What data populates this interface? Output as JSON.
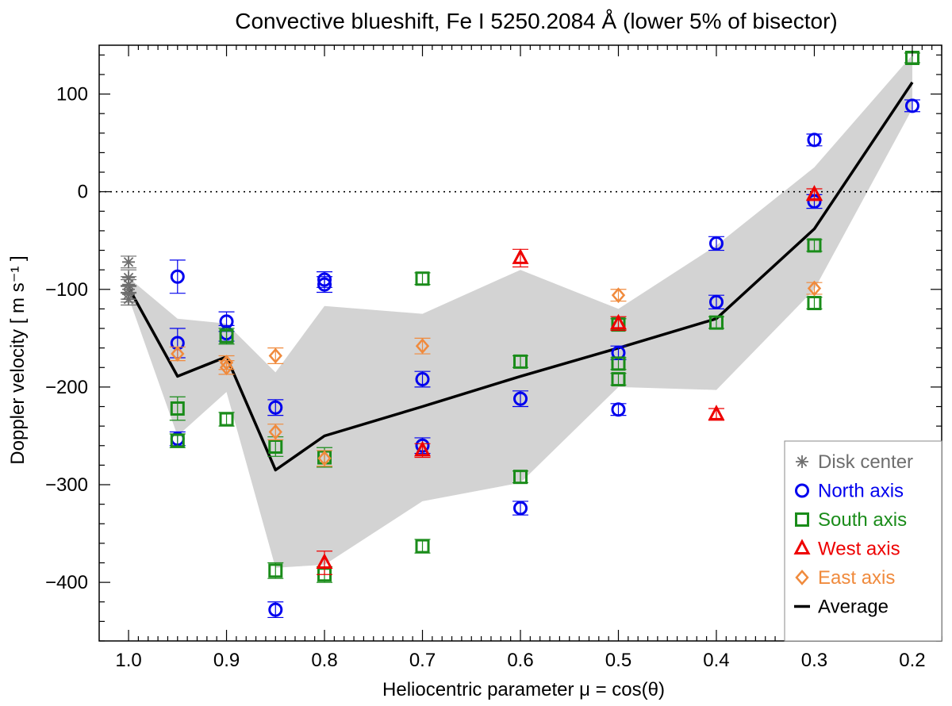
{
  "chart_data": {
    "type": "scatter",
    "title": "Convective blueshift, Fe I 5250.2084 Å (lower 5% of bisector)",
    "xlabel": "Heliocentric parameter μ = cos(θ)",
    "ylabel": "Doppler velocity [ m s⁻¹ ]",
    "xlim": [
      1.03,
      0.17
    ],
    "ylim": [
      -460,
      150
    ],
    "x_reversed": true,
    "x_ticks": [
      1.0,
      0.9,
      0.8,
      0.7,
      0.6,
      0.5,
      0.4,
      0.3,
      0.2
    ],
    "x_tick_labels": [
      "1.0",
      "0.9",
      "0.8",
      "0.7",
      "0.6",
      "0.5",
      "0.4",
      "0.3",
      "0.2"
    ],
    "y_ticks": [
      100,
      0,
      -100,
      -200,
      -300,
      -400
    ],
    "y_tick_labels": [
      "100",
      "0",
      "−100",
      "−200",
      "−300",
      "−400"
    ],
    "zero_line": "dotted",
    "legend_position": "bottom-right",
    "colors": {
      "disk_center": "#6e6e6e",
      "north": "#0000ee",
      "south": "#1a8c1a",
      "west": "#ee0000",
      "east": "#f08a3c",
      "average": "#000000",
      "band": "#d3d3d3"
    },
    "series": [
      {
        "name": "Disk center",
        "marker": "asterisk",
        "color_key": "disk_center",
        "points": [
          {
            "x": 1.0,
            "y": -72,
            "err": 6
          },
          {
            "x": 1.0,
            "y": -88,
            "err": 8
          },
          {
            "x": 1.0,
            "y": -95,
            "err": 8
          },
          {
            "x": 1.0,
            "y": -100,
            "err": 10
          },
          {
            "x": 1.0,
            "y": -105,
            "err": 8
          },
          {
            "x": 1.0,
            "y": -110,
            "err": 6
          }
        ]
      },
      {
        "name": "North axis",
        "marker": "circle",
        "color_key": "north",
        "points": [
          {
            "x": 0.95,
            "y": -87,
            "err": 17
          },
          {
            "x": 0.95,
            "y": -155,
            "err": 15
          },
          {
            "x": 0.95,
            "y": -253,
            "err": 7
          },
          {
            "x": 0.9,
            "y": -133,
            "err": 10
          },
          {
            "x": 0.9,
            "y": -145,
            "err": 8
          },
          {
            "x": 0.85,
            "y": -221,
            "err": 8
          },
          {
            "x": 0.85,
            "y": -428,
            "err": 8
          },
          {
            "x": 0.8,
            "y": -90,
            "err": 8
          },
          {
            "x": 0.8,
            "y": -95,
            "err": 8
          },
          {
            "x": 0.7,
            "y": -192,
            "err": 8
          },
          {
            "x": 0.7,
            "y": -260,
            "err": 8
          },
          {
            "x": 0.6,
            "y": -212,
            "err": 8
          },
          {
            "x": 0.6,
            "y": -324,
            "err": 7
          },
          {
            "x": 0.5,
            "y": -165,
            "err": 7
          },
          {
            "x": 0.5,
            "y": -223,
            "err": 6
          },
          {
            "x": 0.4,
            "y": -53,
            "err": 7
          },
          {
            "x": 0.4,
            "y": -113,
            "err": 7
          },
          {
            "x": 0.3,
            "y": 53,
            "err": 6
          },
          {
            "x": 0.3,
            "y": -10,
            "err": 7
          },
          {
            "x": 0.2,
            "y": 88,
            "err": 6
          }
        ]
      },
      {
        "name": "South axis",
        "marker": "square",
        "color_key": "south",
        "points": [
          {
            "x": 0.95,
            "y": -222,
            "err": 12
          },
          {
            "x": 0.95,
            "y": -255,
            "err": 7
          },
          {
            "x": 0.9,
            "y": -148,
            "err": 8
          },
          {
            "x": 0.9,
            "y": -233,
            "err": 7
          },
          {
            "x": 0.85,
            "y": -261,
            "err": 10
          },
          {
            "x": 0.85,
            "y": -388,
            "err": 8
          },
          {
            "x": 0.8,
            "y": -272,
            "err": 10
          },
          {
            "x": 0.8,
            "y": -392,
            "err": 8
          },
          {
            "x": 0.7,
            "y": -89,
            "err": 6
          },
          {
            "x": 0.7,
            "y": -363,
            "err": 7
          },
          {
            "x": 0.6,
            "y": -174,
            "err": 6
          },
          {
            "x": 0.6,
            "y": -292,
            "err": 6
          },
          {
            "x": 0.5,
            "y": -136,
            "err": 6
          },
          {
            "x": 0.5,
            "y": -176,
            "err": 6
          },
          {
            "x": 0.5,
            "y": -192,
            "err": 6
          },
          {
            "x": 0.4,
            "y": -134,
            "err": 6
          },
          {
            "x": 0.3,
            "y": -55,
            "err": 6
          },
          {
            "x": 0.3,
            "y": -114,
            "err": 6
          },
          {
            "x": 0.2,
            "y": 137,
            "err": 5
          }
        ]
      },
      {
        "name": "West axis",
        "marker": "triangle",
        "color_key": "west",
        "points": [
          {
            "x": 0.8,
            "y": -380,
            "err": 12
          },
          {
            "x": 0.7,
            "y": -265,
            "err": 7
          },
          {
            "x": 0.6,
            "y": -68,
            "err": 9
          },
          {
            "x": 0.5,
            "y": -135,
            "err": 7
          },
          {
            "x": 0.4,
            "y": -228,
            "err": 6
          },
          {
            "x": 0.3,
            "y": -3,
            "err": 6
          }
        ]
      },
      {
        "name": "East axis",
        "marker": "diamond",
        "color_key": "east",
        "points": [
          {
            "x": 0.95,
            "y": -166,
            "err": 7
          },
          {
            "x": 0.9,
            "y": -175,
            "err": 7
          },
          {
            "x": 0.9,
            "y": -180,
            "err": 7
          },
          {
            "x": 0.85,
            "y": -168,
            "err": 8
          },
          {
            "x": 0.85,
            "y": -246,
            "err": 8
          },
          {
            "x": 0.8,
            "y": -273,
            "err": 8
          },
          {
            "x": 0.7,
            "y": -158,
            "err": 8
          },
          {
            "x": 0.5,
            "y": -106,
            "err": 6
          },
          {
            "x": 0.3,
            "y": -99,
            "err": 6
          }
        ]
      }
    ],
    "average": {
      "name": "Average",
      "x": [
        1.0,
        0.95,
        0.9,
        0.85,
        0.8,
        0.7,
        0.6,
        0.5,
        0.4,
        0.3,
        0.2
      ],
      "y": [
        -98,
        -189,
        -169,
        -285,
        -250,
        -220,
        -189,
        -160,
        -130,
        -38,
        112
      ]
    },
    "band": {
      "x": [
        1.0,
        0.95,
        0.9,
        0.85,
        0.8,
        0.7,
        0.6,
        0.5,
        0.4,
        0.3,
        0.2
      ],
      "upper": [
        -88,
        -130,
        -135,
        -185,
        -117,
        -125,
        -80,
        -120,
        -55,
        25,
        140
      ],
      "lower": [
        -108,
        -250,
        -205,
        -385,
        -382,
        -317,
        -298,
        -200,
        -203,
        -100,
        85
      ]
    },
    "legend": [
      {
        "label": "Disk center",
        "marker": "asterisk",
        "color_key": "disk_center"
      },
      {
        "label": "North axis",
        "marker": "circle",
        "color_key": "north"
      },
      {
        "label": "South axis",
        "marker": "square",
        "color_key": "south"
      },
      {
        "label": "West axis",
        "marker": "triangle",
        "color_key": "west"
      },
      {
        "label": "East axis",
        "marker": "diamond",
        "color_key": "east"
      },
      {
        "label": "Average",
        "marker": "line",
        "color_key": "average"
      }
    ]
  }
}
